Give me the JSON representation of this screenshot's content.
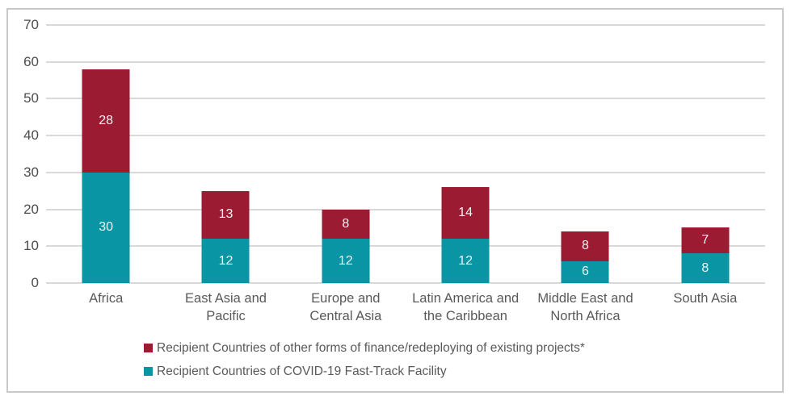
{
  "chart_data": {
    "type": "bar",
    "stacked": true,
    "title": "",
    "xlabel": "",
    "ylabel": "",
    "categories": [
      "Africa",
      "East Asia and\nPacific",
      "Europe and\nCentral Asia",
      "Latin America and\nthe Caribbean",
      "Middle East and\nNorth Africa",
      "South Asia"
    ],
    "series": [
      {
        "name": "Recipient Countries of COVID-19 Fast-Track Facility",
        "color": "#0995a4",
        "values": [
          30,
          12,
          12,
          12,
          6,
          8
        ]
      },
      {
        "name": "Recipient Countries of other forms of finance/redeploying of existing projects*",
        "color": "#9b1b33",
        "values": [
          28,
          13,
          8,
          14,
          8,
          7
        ]
      }
    ],
    "ylim": [
      0,
      70
    ],
    "yticks": [
      0,
      10,
      20,
      30,
      40,
      50,
      60,
      70
    ],
    "grid": true,
    "value_labels": "inside-center",
    "value_label_color": "#f2f2f2",
    "legend_position": "bottom-left",
    "legend_order": [
      1,
      0
    ]
  },
  "styles": {
    "gridline_color": "#d9d9d9",
    "frame_border_color": "#c9c9c9",
    "tick_label_color": "#4d4d4d",
    "category_label_color": "#595959",
    "legend_label_color": "#595959"
  }
}
